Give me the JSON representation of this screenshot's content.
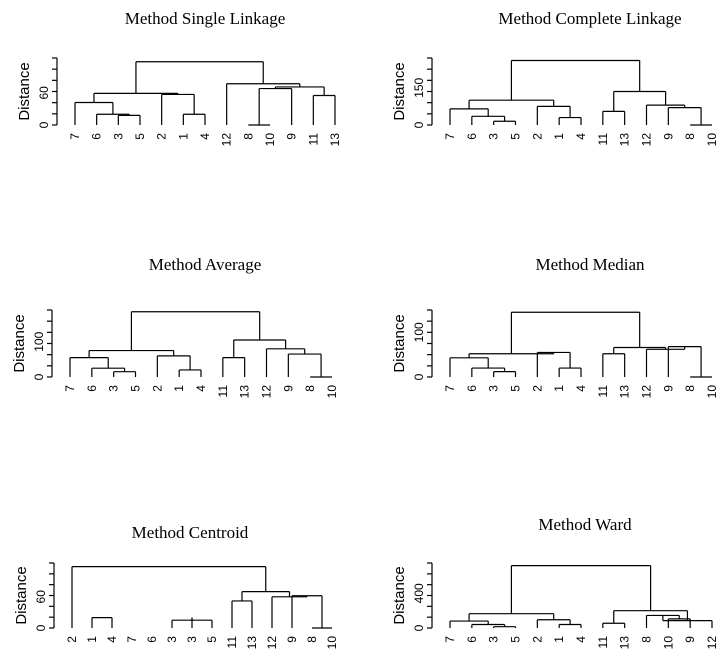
{
  "chart_data": [
    {
      "type": "dendrogram",
      "title": "Method Single Linkage",
      "ylabel": "Distance",
      "yticks": [
        0,
        60
      ],
      "ylim": [
        0,
        125
      ],
      "leaves": [
        "7",
        "6",
        "3",
        "5",
        "2",
        "1",
        "4",
        "12",
        "8",
        "10",
        "9",
        "11",
        "13"
      ],
      "merges": [
        {
          "a": "3",
          "b": "5",
          "h": 18
        },
        {
          "a": "6",
          "b": "3-5",
          "h": 20
        },
        {
          "a": "7",
          "b": "6-3-5",
          "h": 42
        },
        {
          "a": "1",
          "b": "4",
          "h": 20
        },
        {
          "a": "2",
          "b": "1-4",
          "h": 57
        },
        {
          "a": "7-6-3-5",
          "b": "2-1-4",
          "h": 59
        },
        {
          "a": "8",
          "b": "10",
          "h": 0
        },
        {
          "a": "9",
          "b": "8-10",
          "h": 68
        },
        {
          "a": "11",
          "b": "13",
          "h": 55
        },
        {
          "a": "9-8-10",
          "b": "11-13",
          "h": 71
        },
        {
          "a": "12",
          "b": "9-8-10-11-13",
          "h": 77
        },
        {
          "a": "left",
          "b": "right",
          "h": 118
        }
      ]
    },
    {
      "type": "dendrogram",
      "title": "Method Complete Linkage",
      "ylabel": "Distance",
      "yticks": [
        0,
        150
      ],
      "ylim": [
        0,
        270
      ],
      "leaves": [
        "7",
        "6",
        "3",
        "5",
        "2",
        "1",
        "4",
        "11",
        "13",
        "12",
        "9",
        "8",
        "10"
      ],
      "merges": [
        {
          "a": "3",
          "b": "5",
          "h": 15
        },
        {
          "a": "6",
          "b": "3-5",
          "h": 35
        },
        {
          "a": "7",
          "b": "6-3-5",
          "h": 65
        },
        {
          "a": "1",
          "b": "4",
          "h": 30
        },
        {
          "a": "2",
          "b": "1-4",
          "h": 75
        },
        {
          "a": "7-6-3-5",
          "b": "2-1-4",
          "h": 100
        },
        {
          "a": "11",
          "b": "13",
          "h": 55
        },
        {
          "a": "8",
          "b": "10",
          "h": 0
        },
        {
          "a": "9",
          "b": "8-10",
          "h": 70
        },
        {
          "a": "12",
          "b": "9-8-10",
          "h": 80
        },
        {
          "a": "11-13",
          "b": "12-9-8-10",
          "h": 135
        },
        {
          "a": "left",
          "b": "right",
          "h": 260
        }
      ]
    },
    {
      "type": "dendrogram",
      "title": "Method Average",
      "ylabel": "Distance",
      "yticks": [
        0,
        100
      ],
      "ylim": [
        0,
        190
      ],
      "leaves": [
        "7",
        "6",
        "3",
        "5",
        "2",
        "1",
        "4",
        "11",
        "13",
        "12",
        "9",
        "8",
        "10"
      ],
      "merges": [
        {
          "a": "3",
          "b": "5",
          "h": 15
        },
        {
          "a": "6",
          "b": "3-5",
          "h": 25
        },
        {
          "a": "7",
          "b": "6-3-5",
          "h": 55
        },
        {
          "a": "1",
          "b": "4",
          "h": 20
        },
        {
          "a": "2",
          "b": "1-4",
          "h": 60
        },
        {
          "a": "7-6-3-5",
          "b": "2-1-4",
          "h": 75
        },
        {
          "a": "11",
          "b": "13",
          "h": 55
        },
        {
          "a": "8",
          "b": "10",
          "h": 0
        },
        {
          "a": "9",
          "b": "8-10",
          "h": 65
        },
        {
          "a": "12",
          "b": "9-8-10",
          "h": 80
        },
        {
          "a": "11-13",
          "b": "12-9-8-10",
          "h": 105
        },
        {
          "a": "left",
          "b": "right",
          "h": 185
        }
      ]
    },
    {
      "type": "dendrogram",
      "title": "Method Median",
      "ylabel": "Distance",
      "yticks": [
        0,
        100
      ],
      "ylim": [
        0,
        150
      ],
      "leaves": [
        "7",
        "6",
        "3",
        "5",
        "2",
        "1",
        "4",
        "11",
        "13",
        "12",
        "9",
        "8",
        "10"
      ],
      "merges": [
        {
          "a": "3",
          "b": "5",
          "h": 12
        },
        {
          "a": "6",
          "b": "3-5",
          "h": 20
        },
        {
          "a": "7",
          "b": "6-3-5",
          "h": 43
        },
        {
          "a": "1",
          "b": "4",
          "h": 20
        },
        {
          "a": "2",
          "b": "1-4",
          "h": 55
        },
        {
          "a": "7-6-3-5",
          "b": "2-1-4",
          "h": 52
        },
        {
          "a": "11",
          "b": "13",
          "h": 52
        },
        {
          "a": "8",
          "b": "10",
          "h": 0
        },
        {
          "a": "9",
          "b": "8-10",
          "h": 68
        },
        {
          "a": "12",
          "b": "9-8-10",
          "h": 62
        },
        {
          "a": "11-13",
          "b": "12-9-8-10",
          "h": 66
        },
        {
          "a": "left",
          "b": "right",
          "h": 145
        }
      ]
    },
    {
      "type": "dendrogram",
      "title": "Method Centroid",
      "ylabel": "Distance",
      "yticks": [
        0,
        60
      ],
      "ylim": [
        0,
        125
      ],
      "leaves": [
        "2",
        "1",
        "4",
        "7",
        "6",
        "3",
        "3",
        "5",
        "11",
        "13",
        "12",
        "9",
        "8",
        "10"
      ],
      "merges": [
        {
          "a": "1",
          "b": "4",
          "h": 20
        },
        {
          "a": "3",
          "b": "5",
          "h": 15
        },
        {
          "a": "3a",
          "b": "3-5",
          "h": 20
        },
        {
          "a": "6",
          "b": "3-3-5",
          "h": 42
        },
        {
          "a": "7",
          "b": "6-3-3-5",
          "h": 48
        },
        {
          "a": "1-4",
          "b": "7-6-3-3-5",
          "h": 50
        },
        {
          "a": "2",
          "b": "1-4-7-6-3-3-5",
          "h": 48
        },
        {
          "a": "11",
          "b": "13",
          "h": 52
        },
        {
          "a": "8",
          "b": "10",
          "h": 0
        },
        {
          "a": "9",
          "b": "8-10",
          "h": 62
        },
        {
          "a": "12",
          "b": "9-8-10",
          "h": 60
        },
        {
          "a": "11-13",
          "b": "12-9-8-10",
          "h": 70
        },
        {
          "a": "left",
          "b": "right",
          "h": 118
        }
      ]
    },
    {
      "type": "dendrogram",
      "title": "Method Ward",
      "ylabel": "Distance",
      "yticks": [
        0,
        400
      ],
      "ylim": [
        0,
        750
      ],
      "leaves": [
        "7",
        "6",
        "3",
        "5",
        "2",
        "1",
        "4",
        "11",
        "13",
        "8",
        "10",
        "9",
        "12"
      ],
      "merges": [
        {
          "a": "3",
          "b": "5",
          "h": 15
        },
        {
          "a": "6",
          "b": "3-5",
          "h": 40
        },
        {
          "a": "7",
          "b": "6-3-5",
          "h": 80
        },
        {
          "a": "1",
          "b": "4",
          "h": 40
        },
        {
          "a": "2",
          "b": "1-4",
          "h": 95
        },
        {
          "a": "7-6-3-5",
          "b": "2-1-4",
          "h": 165
        },
        {
          "a": "11",
          "b": "13",
          "h": 55
        },
        {
          "a": "10",
          "b": "9",
          "h": 105
        },
        {
          "a": "8",
          "b": "10-9",
          "h": 145
        },
        {
          "a": "12",
          "b": "8-10-9",
          "h": 85
        },
        {
          "a": "11-13",
          "b": "12-8-10-9",
          "h": 200
        },
        {
          "a": "left",
          "b": "right",
          "h": 720
        }
      ]
    }
  ]
}
